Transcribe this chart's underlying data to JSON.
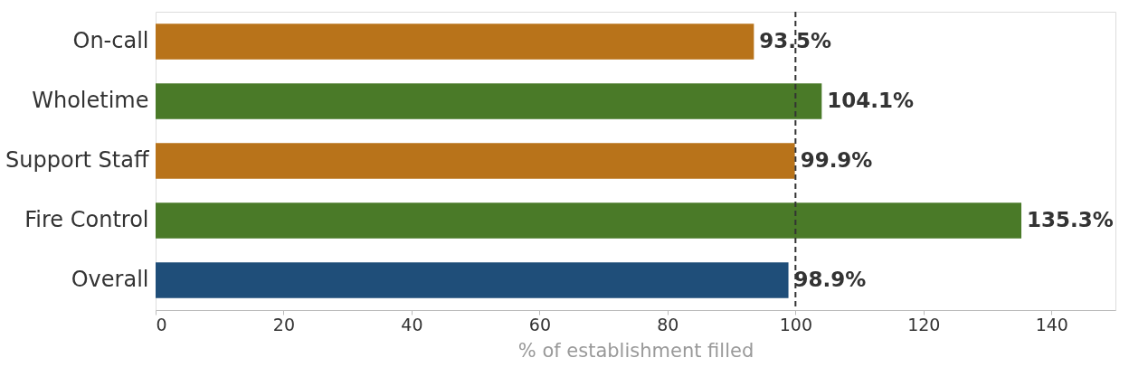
{
  "chart_data": {
    "type": "bar",
    "orientation": "horizontal",
    "xlabel": "% of establishment filled",
    "categories": [
      "On-call",
      "Wholetime",
      "Support Staff",
      "Fire Control",
      "Overall"
    ],
    "values": [
      93.5,
      104.1,
      99.9,
      135.3,
      98.9
    ],
    "colors": [
      "#b8731a",
      "#4a7a28",
      "#b8731a",
      "#4a7a28",
      "#1f4e79"
    ],
    "value_labels": [
      "93.5%",
      "104.1%",
      "99.9%",
      "135.3%",
      "98.9%"
    ],
    "xlim": [
      0,
      150
    ],
    "xticks": [
      0,
      20,
      40,
      60,
      80,
      100,
      120,
      140
    ],
    "ref_lines": [
      {
        "axis": "x",
        "value": 100,
        "color": "#333333",
        "line_style": "dashed"
      }
    ],
    "grid": false
  }
}
